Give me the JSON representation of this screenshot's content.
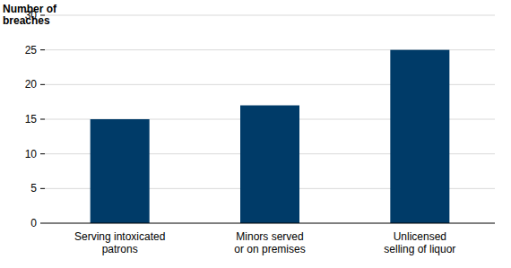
{
  "chart_data": {
    "type": "bar",
    "y_label": "Number of\nbreaches",
    "categories": [
      "Serving intoxicated\npatrons",
      "Minors served\nor on premises",
      "Unlicensed\nselling of liquor"
    ],
    "values": [
      15,
      17,
      25
    ],
    "color": "#003b68",
    "ylim": [
      0,
      30
    ],
    "yticks": [
      0,
      5,
      10,
      15,
      20,
      25,
      30
    ],
    "grid": true
  }
}
